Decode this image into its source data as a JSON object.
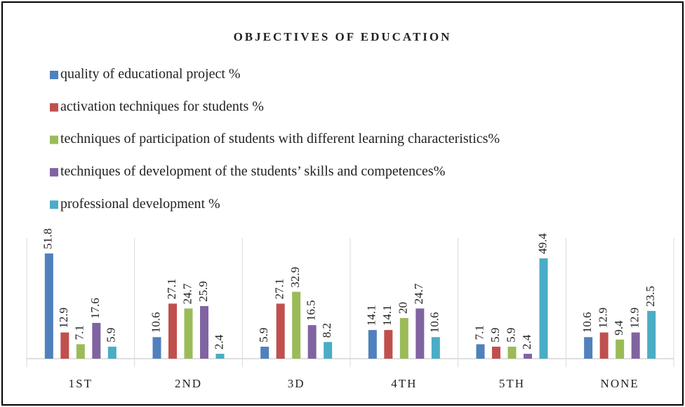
{
  "chart_data": {
    "type": "bar",
    "title": "OBJECTIVES OF EDUCATION",
    "categories": [
      "1ST",
      "2ND",
      "3D",
      "4TH",
      "5TH",
      "NONE"
    ],
    "series": [
      {
        "name": "quality of educational project %",
        "color": "#4f81bd",
        "values": [
          51.8,
          10.6,
          5.9,
          14.1,
          7.1,
          10.6
        ]
      },
      {
        "name": "activation techniques for students %",
        "color": "#c0504d",
        "values": [
          12.9,
          27.1,
          27.1,
          14.1,
          5.9,
          12.9
        ]
      },
      {
        "name": "techniques of participation of students with different learning characteristics%",
        "color": "#9bbb59",
        "values": [
          7.1,
          24.7,
          32.9,
          20,
          5.9,
          9.4
        ]
      },
      {
        "name": "techniques of development of the students’ skills and competences%",
        "color": "#8064a2",
        "values": [
          17.6,
          25.9,
          16.5,
          24.7,
          2.4,
          12.9
        ]
      },
      {
        "name": "professional development %",
        "color": "#4bacc6",
        "values": [
          5.9,
          2.4,
          8.2,
          10.6,
          49.4,
          23.5
        ]
      }
    ]
  }
}
